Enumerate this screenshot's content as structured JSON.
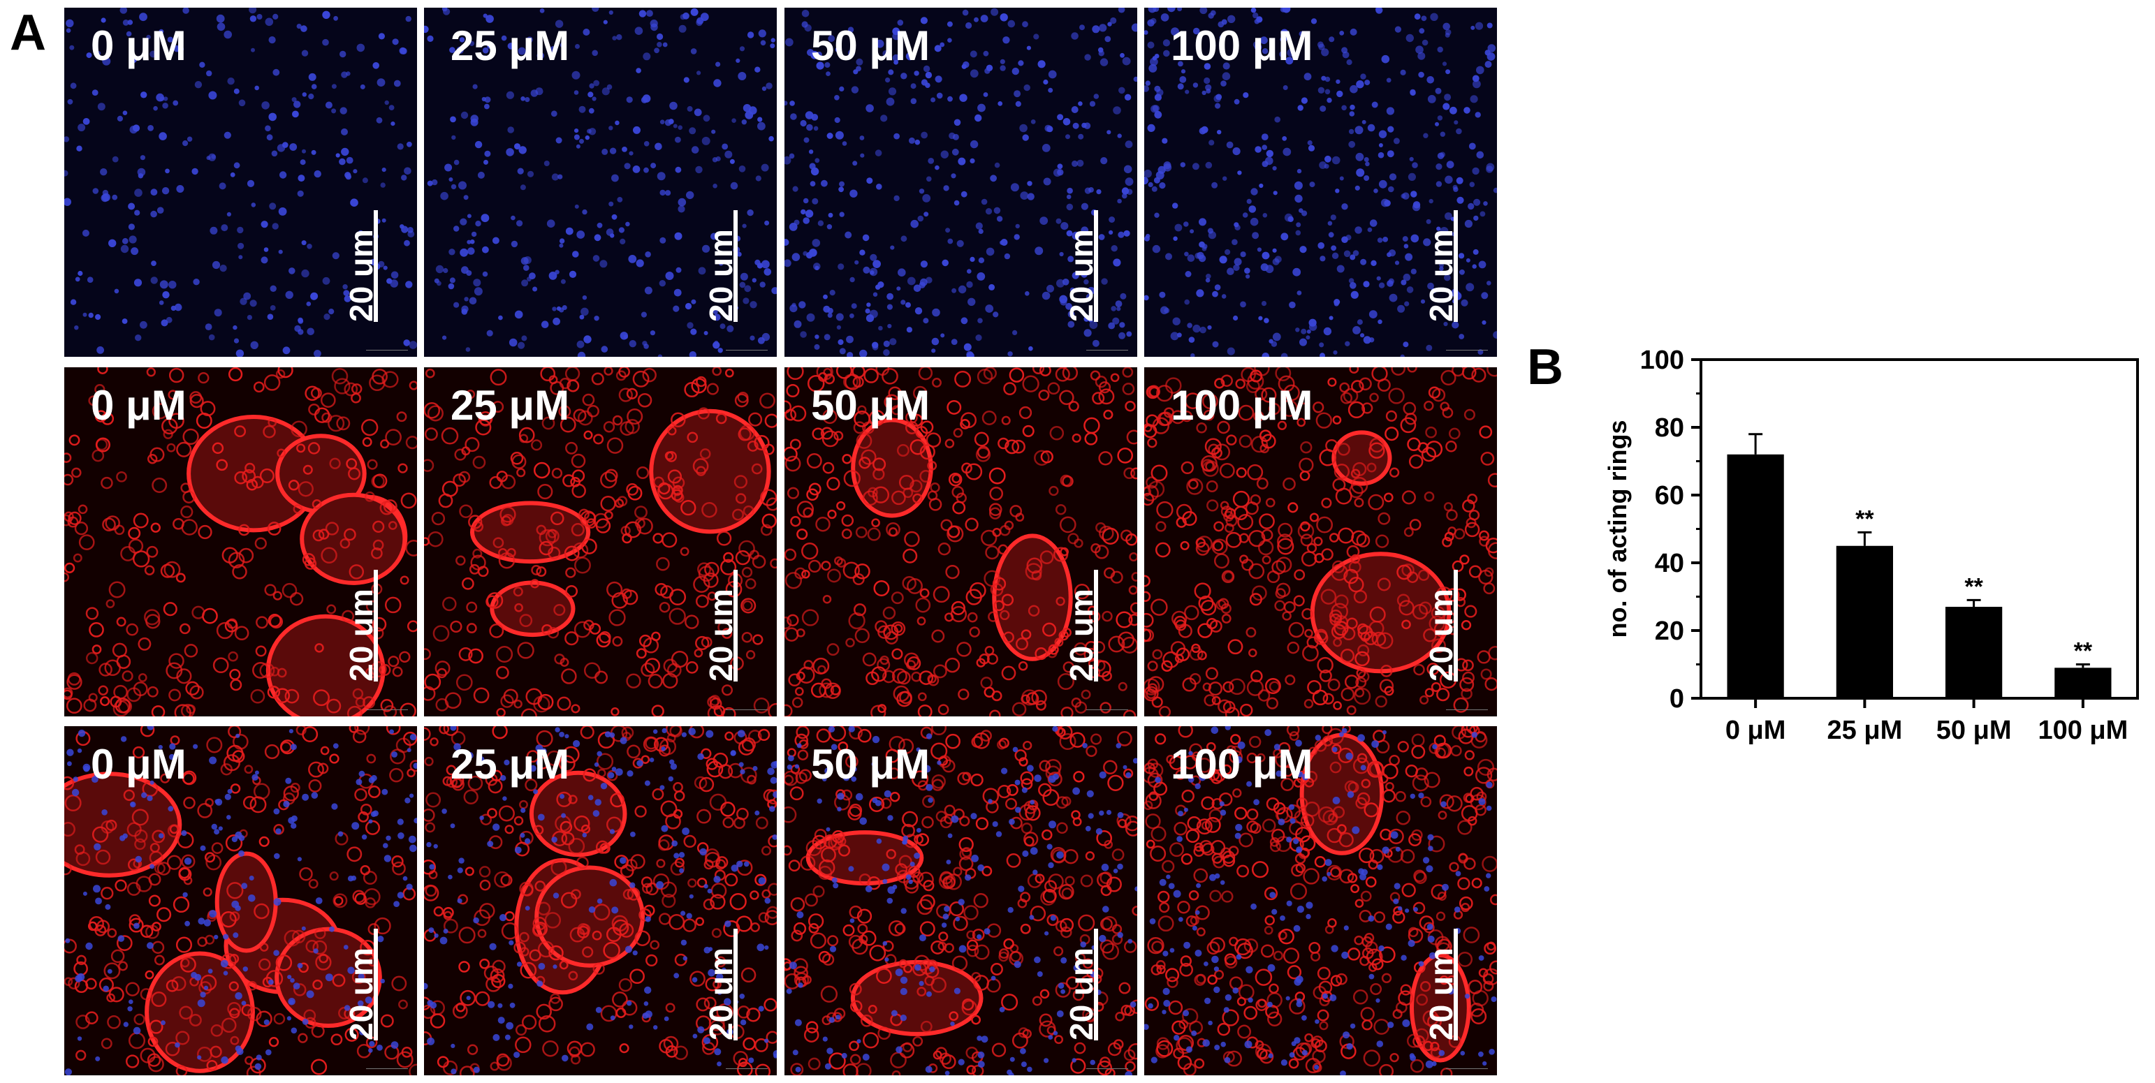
{
  "panel_a": {
    "letter": "A",
    "scale_bar_label": "20 um",
    "columns": [
      "0 μM",
      "25 μM",
      "50 μM",
      "100 μM"
    ],
    "rows": [
      {
        "channel": "nuclei",
        "color": "#3a46d8"
      },
      {
        "channel": "actin",
        "color": "#e51d1d"
      },
      {
        "channel": "merge",
        "color": "#c8213a"
      }
    ]
  },
  "panel_b": {
    "letter": "B"
  },
  "chart_data": {
    "type": "bar",
    "categories": [
      "0 μM",
      "25 μM",
      "50 μM",
      "100 μM"
    ],
    "values": [
      72,
      45,
      27,
      9
    ],
    "errors": [
      6,
      4,
      2,
      1
    ],
    "significance": [
      "",
      "**",
      "**",
      "**"
    ],
    "ylabel": "no. of acting rings",
    "xlabel": "",
    "ylim": [
      0,
      100
    ],
    "yticks": [
      0,
      20,
      40,
      60,
      80,
      100
    ],
    "bar_color": "#000000"
  }
}
